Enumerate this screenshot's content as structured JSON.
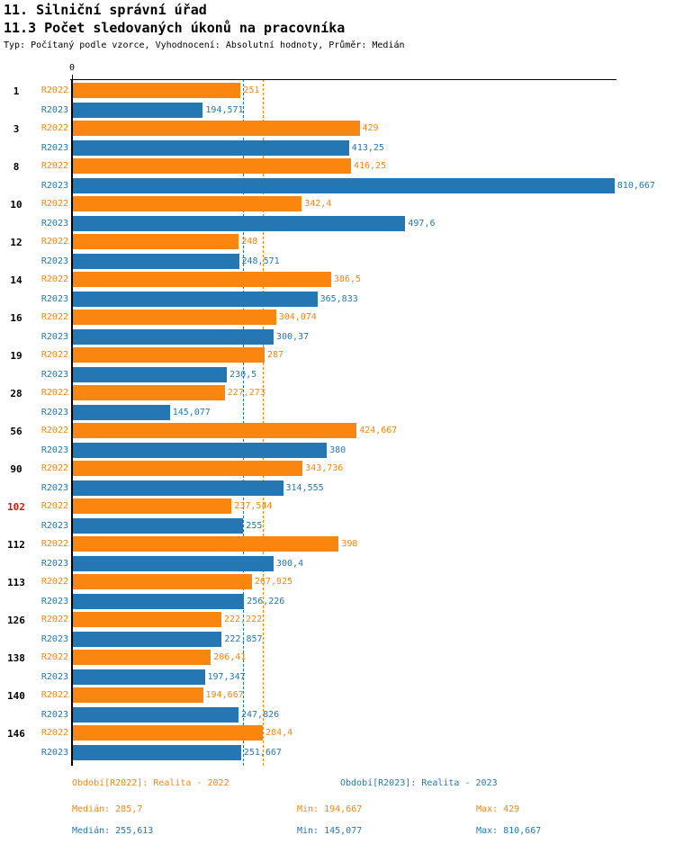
{
  "header": {
    "title1": "11. Silniční správní úřad",
    "title2": "11.3 Počet sledovaných úkonů na pracovníka",
    "subtitle": "Typ: Počítaný podle vzorce, Vyhodnocení: Absolutní hodnoty, Průměr: Medián"
  },
  "chart_data": {
    "type": "bar",
    "orientation": "horizontal",
    "title": "11.3 Počet sledovaných úkonů na pracovníka",
    "xlabel": "",
    "ylabel": "",
    "xlim": [
      0,
      815
    ],
    "axis_zero_label": "0",
    "grid": false,
    "legend_position": "bottom",
    "categories": [
      "1",
      "3",
      "8",
      "10",
      "12",
      "14",
      "16",
      "19",
      "28",
      "56",
      "90",
      "102",
      "112",
      "113",
      "126",
      "138",
      "140",
      "146"
    ],
    "highlighted_categories": [
      "102"
    ],
    "series": [
      {
        "name": "R2022",
        "color": "#fa850f",
        "values": [
          251,
          429,
          416.25,
          342.4,
          248,
          386.5,
          304.074,
          287,
          227.273,
          424.667,
          343.736,
          237.544,
          398,
          267.925,
          222.222,
          206.41,
          194.667,
          284.4
        ],
        "labels": [
          "251",
          "429",
          "416,25",
          "342,4",
          "248",
          "386,5",
          "304,074",
          "287",
          "227,273",
          "424,667",
          "343,736",
          "237,544",
          "398",
          "267,925",
          "222,222",
          "206,41",
          "194,667",
          "284,4"
        ],
        "median": 285.7
      },
      {
        "name": "R2023",
        "color": "#2477b2",
        "values": [
          194.571,
          413.25,
          810.667,
          497.6,
          248.571,
          365.833,
          300.37,
          230.5,
          145.077,
          380,
          314.555,
          255,
          300.4,
          256.226,
          222.857,
          197.347,
          247.826,
          251.667
        ],
        "labels": [
          "194,571",
          "413,25",
          "810,667",
          "497,6",
          "248,571",
          "365,833",
          "300,37",
          "230,5",
          "145,077",
          "380",
          "314,555",
          "255",
          "300,4",
          "256,226",
          "222,857",
          "197,347",
          "247,826",
          "251,667"
        ],
        "median": 255.613
      }
    ]
  },
  "colors": {
    "series_2022": "#fa850f",
    "series_2023": "#2477b2",
    "highlight_category": "#dd1111",
    "axis": "#000000"
  },
  "footer": {
    "legend_2022": "Období[R2022]: Realita - 2022",
    "legend_2023": "Období[R2023]: Realita - 2023",
    "stats_2022": {
      "median": "Medián: 285,7",
      "min": "Min: 194,667",
      "max": "Max: 429"
    },
    "stats_2023": {
      "median": "Medián: 255,613",
      "min": "Min: 145,077",
      "max": "Max: 810,667"
    }
  }
}
